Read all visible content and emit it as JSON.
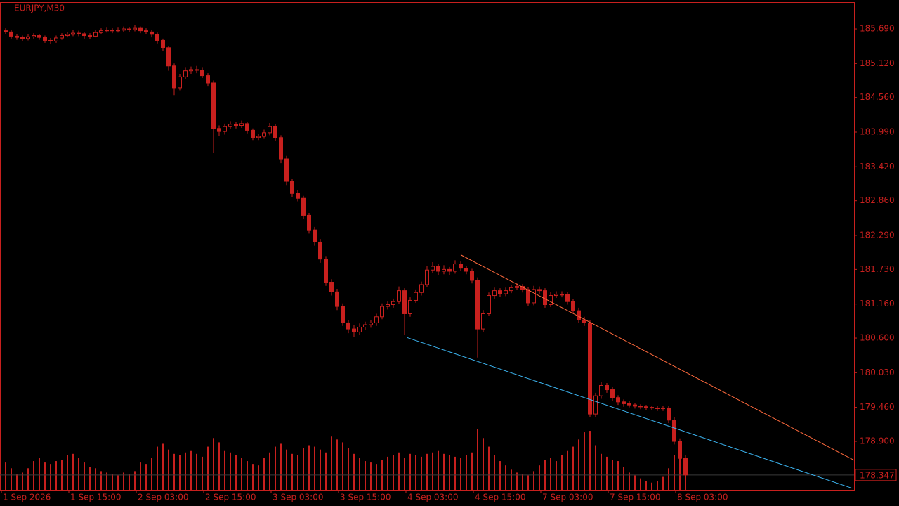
{
  "chart_data": {
    "type": "candlestick",
    "title": "EURJPY,M30",
    "color": "#c8201e",
    "background": "#000000",
    "grid": false,
    "ylim": [
      178.102,
      186.13
    ],
    "yticks": [
      {
        "value": 185.69,
        "label": "185.690"
      },
      {
        "value": 185.12,
        "label": "185.120"
      },
      {
        "value": 184.56,
        "label": "184.560"
      },
      {
        "value": 183.99,
        "label": "183.990"
      },
      {
        "value": 183.42,
        "label": "183.420"
      },
      {
        "value": 182.86,
        "label": "182.860"
      },
      {
        "value": 182.29,
        "label": "182.290"
      },
      {
        "value": 181.73,
        "label": "181.730"
      },
      {
        "value": 181.16,
        "label": "181.160"
      },
      {
        "value": 180.6,
        "label": "180.600"
      },
      {
        "value": 180.03,
        "label": "180.030"
      },
      {
        "value": 179.46,
        "label": "179.460"
      },
      {
        "value": 178.9,
        "label": "178.900"
      }
    ],
    "last_price": 178.347,
    "categories": [
      "1 Sep 2026",
      null,
      null,
      null,
      null,
      null,
      null,
      null,
      null,
      null,
      null,
      null,
      "1 Sep 15:00",
      null,
      null,
      null,
      null,
      null,
      null,
      null,
      null,
      null,
      null,
      null,
      "2 Sep 03:00",
      null,
      null,
      null,
      null,
      null,
      null,
      null,
      null,
      null,
      null,
      null,
      "2 Sep 15:00",
      null,
      null,
      null,
      null,
      null,
      null,
      null,
      null,
      null,
      null,
      null,
      "3 Sep 03:00",
      null,
      null,
      null,
      null,
      null,
      null,
      null,
      null,
      null,
      null,
      null,
      "3 Sep 15:00",
      null,
      null,
      null,
      null,
      null,
      null,
      null,
      null,
      null,
      null,
      null,
      "4 Sep 03:00",
      null,
      null,
      null,
      null,
      null,
      null,
      null,
      null,
      null,
      null,
      null,
      "4 Sep 15:00",
      null,
      null,
      null,
      null,
      null,
      null,
      null,
      null,
      null,
      null,
      null,
      "7 Sep 03:00",
      null,
      null,
      null,
      null,
      null,
      null,
      null,
      null,
      null,
      null,
      null,
      "7 Sep 15:00",
      null,
      null,
      null,
      null,
      null,
      null,
      null,
      null,
      null,
      null,
      null,
      "8 Sep 03:00",
      null
    ],
    "candles": [
      [
        185.66,
        185.7,
        185.6,
        185.64
      ],
      [
        185.64,
        185.67,
        185.53,
        185.57
      ],
      [
        185.57,
        185.6,
        185.51,
        185.55
      ],
      [
        185.55,
        185.58,
        185.49,
        185.53
      ],
      [
        185.53,
        185.6,
        185.5,
        185.56
      ],
      [
        185.56,
        185.62,
        185.53,
        185.58
      ],
      [
        185.58,
        185.61,
        185.51,
        185.55
      ],
      [
        185.55,
        185.58,
        185.46,
        185.5
      ],
      [
        185.5,
        185.54,
        185.44,
        185.49
      ],
      [
        185.49,
        185.58,
        185.46,
        185.54
      ],
      [
        185.54,
        185.62,
        185.51,
        185.58
      ],
      [
        185.58,
        185.64,
        185.55,
        185.6
      ],
      [
        185.6,
        185.67,
        185.57,
        185.62
      ],
      [
        185.62,
        185.66,
        185.57,
        185.61
      ],
      [
        185.61,
        185.64,
        185.53,
        185.58
      ],
      [
        185.58,
        185.62,
        185.52,
        185.57
      ],
      [
        185.57,
        185.67,
        185.55,
        185.63
      ],
      [
        185.63,
        185.7,
        185.6,
        185.66
      ],
      [
        185.66,
        185.71,
        185.63,
        185.67
      ],
      [
        185.67,
        185.7,
        185.62,
        185.66
      ],
      [
        185.66,
        185.71,
        185.63,
        185.67
      ],
      [
        185.67,
        185.73,
        185.64,
        185.69
      ],
      [
        185.69,
        185.72,
        185.64,
        185.68
      ],
      [
        185.68,
        185.75,
        185.65,
        185.7
      ],
      [
        185.7,
        185.73,
        185.62,
        185.66
      ],
      [
        185.66,
        185.7,
        185.6,
        185.64
      ],
      [
        185.64,
        185.67,
        185.55,
        185.6
      ],
      [
        185.6,
        185.63,
        185.45,
        185.5
      ],
      [
        185.5,
        185.53,
        185.33,
        185.38
      ],
      [
        185.38,
        185.41,
        185.0,
        185.08
      ],
      [
        185.08,
        185.12,
        184.6,
        184.72
      ],
      [
        184.72,
        184.95,
        184.68,
        184.9
      ],
      [
        184.9,
        185.05,
        184.86,
        185.0
      ],
      [
        185.0,
        185.07,
        184.95,
        185.02
      ],
      [
        185.02,
        185.08,
        184.96,
        185.01
      ],
      [
        185.01,
        185.05,
        184.88,
        184.92
      ],
      [
        184.92,
        184.96,
        184.74,
        184.8
      ],
      [
        184.8,
        184.84,
        183.65,
        184.05
      ],
      [
        184.05,
        184.1,
        183.92,
        184.0
      ],
      [
        184.0,
        184.13,
        183.95,
        184.08
      ],
      [
        184.08,
        184.17,
        184.04,
        184.12
      ],
      [
        184.12,
        184.16,
        184.05,
        184.1
      ],
      [
        184.1,
        184.18,
        184.06,
        184.13
      ],
      [
        184.13,
        184.16,
        183.97,
        184.02
      ],
      [
        184.02,
        184.05,
        183.86,
        183.9
      ],
      [
        183.9,
        183.96,
        183.86,
        183.92
      ],
      [
        183.92,
        184.03,
        183.88,
        183.98
      ],
      [
        183.98,
        184.14,
        183.94,
        184.08
      ],
      [
        184.08,
        184.12,
        183.85,
        183.9
      ],
      [
        183.9,
        183.94,
        183.48,
        183.55
      ],
      [
        183.55,
        183.6,
        183.12,
        183.18
      ],
      [
        183.18,
        183.22,
        182.92,
        182.98
      ],
      [
        182.98,
        183.03,
        182.85,
        182.9
      ],
      [
        182.9,
        182.94,
        182.56,
        182.62
      ],
      [
        182.62,
        182.66,
        182.32,
        182.38
      ],
      [
        182.38,
        182.43,
        182.12,
        182.18
      ],
      [
        182.18,
        182.23,
        181.84,
        181.9
      ],
      [
        181.9,
        181.95,
        181.46,
        181.52
      ],
      [
        181.52,
        181.57,
        181.3,
        181.36
      ],
      [
        181.36,
        181.41,
        181.06,
        181.12
      ],
      [
        181.12,
        181.17,
        180.8,
        180.85
      ],
      [
        180.85,
        180.9,
        180.68,
        180.75
      ],
      [
        180.75,
        180.82,
        180.62,
        180.7
      ],
      [
        180.7,
        180.84,
        180.65,
        180.78
      ],
      [
        180.78,
        180.87,
        180.73,
        180.82
      ],
      [
        180.82,
        180.9,
        180.77,
        180.85
      ],
      [
        180.85,
        181.0,
        180.8,
        180.95
      ],
      [
        180.95,
        181.17,
        180.91,
        181.12
      ],
      [
        181.12,
        181.2,
        181.07,
        181.15
      ],
      [
        181.15,
        181.25,
        181.1,
        181.2
      ],
      [
        181.2,
        181.45,
        181.16,
        181.38
      ],
      [
        181.38,
        181.42,
        180.65,
        181.0
      ],
      [
        181.0,
        181.27,
        180.95,
        181.22
      ],
      [
        181.22,
        181.4,
        181.18,
        181.35
      ],
      [
        181.35,
        181.53,
        181.3,
        181.48
      ],
      [
        181.48,
        181.78,
        181.44,
        181.72
      ],
      [
        181.72,
        181.85,
        181.67,
        181.78
      ],
      [
        181.78,
        181.82,
        181.64,
        181.7
      ],
      [
        181.7,
        181.8,
        181.65,
        181.73
      ],
      [
        181.73,
        181.77,
        181.64,
        181.7
      ],
      [
        181.7,
        181.88,
        181.66,
        181.82
      ],
      [
        181.82,
        181.86,
        181.7,
        181.75
      ],
      [
        181.75,
        181.79,
        181.65,
        181.7
      ],
      [
        181.7,
        181.74,
        181.5,
        181.55
      ],
      [
        181.55,
        181.6,
        180.28,
        180.75
      ],
      [
        180.75,
        181.06,
        180.7,
        181.0
      ],
      [
        181.0,
        181.35,
        180.96,
        181.3
      ],
      [
        181.3,
        181.43,
        181.25,
        181.38
      ],
      [
        181.38,
        181.42,
        181.28,
        181.33
      ],
      [
        181.33,
        181.43,
        181.29,
        181.38
      ],
      [
        181.38,
        181.48,
        181.34,
        181.43
      ],
      [
        181.43,
        181.5,
        181.39,
        181.45
      ],
      [
        181.45,
        181.49,
        181.35,
        181.4
      ],
      [
        181.4,
        181.44,
        181.13,
        181.18
      ],
      [
        181.18,
        181.46,
        181.14,
        181.4
      ],
      [
        181.4,
        181.45,
        181.33,
        181.38
      ],
      [
        181.38,
        181.42,
        181.1,
        181.15
      ],
      [
        181.15,
        181.36,
        181.11,
        181.3
      ],
      [
        181.3,
        181.37,
        181.26,
        181.32
      ],
      [
        181.32,
        181.37,
        181.27,
        181.32
      ],
      [
        181.32,
        181.36,
        181.15,
        181.2
      ],
      [
        181.2,
        181.24,
        181.0,
        181.05
      ],
      [
        181.05,
        181.1,
        180.85,
        180.9
      ],
      [
        180.9,
        180.95,
        180.8,
        180.85
      ],
      [
        180.85,
        180.9,
        179.3,
        179.35
      ],
      [
        179.35,
        179.7,
        179.3,
        179.65
      ],
      [
        179.65,
        179.88,
        179.6,
        179.82
      ],
      [
        179.82,
        179.86,
        179.7,
        179.75
      ],
      [
        179.75,
        179.8,
        179.57,
        179.62
      ],
      [
        179.62,
        179.66,
        179.5,
        179.55
      ],
      [
        179.55,
        179.59,
        179.47,
        179.52
      ],
      [
        179.52,
        179.56,
        179.46,
        179.5
      ],
      [
        179.5,
        179.53,
        179.44,
        179.48
      ],
      [
        179.48,
        179.51,
        179.43,
        179.47
      ],
      [
        179.47,
        179.5,
        179.42,
        179.46
      ],
      [
        179.46,
        179.49,
        179.41,
        179.45
      ],
      [
        179.45,
        179.48,
        179.4,
        179.44
      ],
      [
        179.44,
        179.49,
        179.4,
        179.45
      ],
      [
        179.45,
        179.48,
        179.2,
        179.25
      ],
      [
        179.25,
        179.3,
        178.85,
        178.9
      ],
      [
        178.9,
        178.95,
        178.56,
        178.62
      ],
      [
        178.62,
        178.67,
        178.3,
        178.347
      ]
    ],
    "volumes": [
      38,
      30,
      22,
      24,
      30,
      40,
      44,
      38,
      36,
      40,
      42,
      48,
      50,
      44,
      38,
      32,
      30,
      26,
      24,
      22,
      20,
      24,
      22,
      26,
      38,
      36,
      44,
      60,
      64,
      56,
      50,
      48,
      52,
      54,
      50,
      46,
      60,
      72,
      66,
      54,
      52,
      48,
      44,
      40,
      36,
      34,
      44,
      52,
      60,
      64,
      56,
      50,
      48,
      58,
      62,
      60,
      56,
      52,
      74,
      70,
      66,
      58,
      50,
      44,
      40,
      38,
      36,
      42,
      46,
      48,
      52,
      44,
      50,
      48,
      46,
      50,
      52,
      54,
      50,
      48,
      46,
      44,
      48,
      52,
      84,
      72,
      60,
      48,
      40,
      34,
      28,
      24,
      22,
      20,
      26,
      34,
      42,
      44,
      40,
      48,
      54,
      60,
      70,
      80,
      82,
      62,
      50,
      46,
      42,
      40,
      32,
      24,
      20,
      16,
      12,
      10,
      12,
      18,
      30,
      48,
      44,
      24
    ],
    "trendlines": [
      {
        "color": "#ff6a3d",
        "from": [
          81,
          181.97
        ],
        "to": [
          151,
          178.59
        ]
      },
      {
        "color": "#3cb4f0",
        "from": [
          71.4,
          180.61
        ],
        "to": [
          150.6,
          178.13
        ]
      }
    ]
  }
}
